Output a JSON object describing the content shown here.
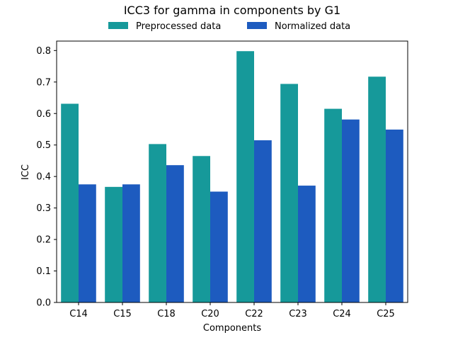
{
  "chart_data": {
    "type": "bar",
    "title": "ICC3 for gamma in components by G1",
    "xlabel": "Components",
    "ylabel": "ICC",
    "categories": [
      "C14",
      "C15",
      "C18",
      "C20",
      "C22",
      "C23",
      "C24",
      "C25"
    ],
    "ylim": [
      0,
      0.83
    ],
    "yticks": [
      "0.0",
      "0.1",
      "0.2",
      "0.3",
      "0.4",
      "0.5",
      "0.6",
      "0.7",
      "0.8"
    ],
    "legend_position": "top-center",
    "grid": false,
    "series": [
      {
        "name": "Preprocessed data",
        "color": "#16999a",
        "values": [
          0.631,
          0.367,
          0.503,
          0.465,
          0.798,
          0.694,
          0.615,
          0.717
        ]
      },
      {
        "name": "Normalized data",
        "color": "#1d5bbf",
        "values": [
          0.375,
          0.375,
          0.436,
          0.352,
          0.515,
          0.371,
          0.581,
          0.549
        ]
      }
    ]
  }
}
